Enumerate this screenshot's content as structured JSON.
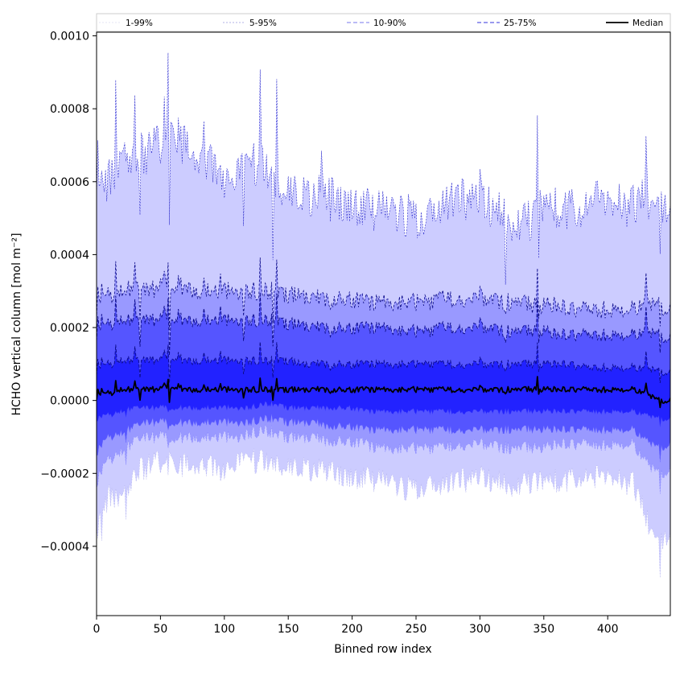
{
  "chart_data": {
    "type": "area",
    "title": "",
    "xlabel": "Binned row index",
    "ylabel": "HCHO vertical column [mol m⁻²]",
    "xlim": [
      0,
      449
    ],
    "ylim": [
      -0.00059,
      0.00101
    ],
    "x_ticks": [
      0,
      50,
      100,
      150,
      200,
      250,
      300,
      350,
      400
    ],
    "y_ticks": [
      -0.0004,
      -0.0002,
      0.0,
      0.0002,
      0.0004,
      0.0006,
      0.0008,
      0.001
    ],
    "x_tick_labels": [
      "0",
      "50",
      "100",
      "150",
      "200",
      "250",
      "300",
      "350",
      "400"
    ],
    "y_tick_labels": [
      "−0.0004",
      "−0.0002",
      "0.0000",
      "0.0002",
      "0.0004",
      "0.0006",
      "0.0008",
      "0.0010"
    ],
    "grid": false,
    "legend_position": "top",
    "legend": [
      {
        "label": "1-99%",
        "style": "line",
        "color": "#dadaf4",
        "dash": "2,2",
        "width": 0.8
      },
      {
        "label": "5-95%",
        "style": "line",
        "color": "#9999dd",
        "dash": "2,2",
        "width": 0.8
      },
      {
        "label": "10-90%",
        "style": "line",
        "color": "#7777ee",
        "dash": "5,3",
        "width": 1.0
      },
      {
        "label": "25-75%",
        "style": "line",
        "color": "#3333dd",
        "dash": "5,3",
        "width": 1.0
      },
      {
        "label": "Median",
        "style": "line",
        "color": "#000000",
        "dash": "",
        "width": 1.8
      }
    ],
    "band_colors": {
      "p1_99": "#ccccff",
      "p5_95": "#9999ff",
      "p10_90": "#5555ff",
      "p25_75": "#2222ff"
    },
    "anchors": {
      "x": [
        0,
        10,
        20,
        30,
        40,
        50,
        60,
        70,
        80,
        90,
        100,
        110,
        120,
        130,
        140,
        150,
        160,
        170,
        180,
        190,
        200,
        210,
        220,
        230,
        240,
        250,
        260,
        270,
        280,
        290,
        300,
        310,
        320,
        330,
        340,
        350,
        360,
        370,
        380,
        390,
        400,
        410,
        420,
        430,
        440,
        449
      ],
      "p1": [
        -0.00036,
        -0.00026,
        -0.00028,
        -0.0002,
        -0.00018,
        -0.00017,
        -0.00017,
        -0.00018,
        -0.00018,
        -0.00018,
        -0.00019,
        -0.00017,
        -0.00017,
        -0.00016,
        -0.00017,
        -0.00018,
        -0.00018,
        -0.00019,
        -0.0002,
        -0.0002,
        -0.00021,
        -0.00021,
        -0.00022,
        -0.00023,
        -0.00024,
        -0.00024,
        -0.00023,
        -0.00023,
        -0.00022,
        -0.00022,
        -0.00021,
        -0.00022,
        -0.00023,
        -0.00023,
        -0.00022,
        -0.00022,
        -0.00022,
        -0.00022,
        -0.00021,
        -0.00021,
        -0.00021,
        -0.00022,
        -0.00023,
        -0.00032,
        -0.0004,
        -0.00037
      ],
      "p5": [
        -0.00022,
        -0.00016,
        -0.00014,
        -0.00011,
        -0.0001,
        -0.0001,
        -0.0001,
        -0.0001,
        -0.0001,
        -0.0001,
        -0.0001,
        -0.0001,
        -9e-05,
        -8e-05,
        -9e-05,
        -0.0001,
        -0.0001,
        -0.0001,
        -0.00011,
        -0.00011,
        -0.00011,
        -0.00012,
        -0.00013,
        -0.00013,
        -0.00013,
        -0.00013,
        -0.00013,
        -0.00013,
        -0.00012,
        -0.00012,
        -0.00012,
        -0.00012,
        -0.00013,
        -0.00013,
        -0.00013,
        -0.00013,
        -0.00012,
        -0.00012,
        -0.00012,
        -0.00012,
        -0.00012,
        -0.00012,
        -0.00012,
        -0.00017,
        -0.0002,
        -0.00019
      ],
      "p10": [
        -0.00014,
        -0.0001,
        -9e-05,
        -7e-05,
        -6e-05,
        -6e-05,
        -6e-05,
        -6e-05,
        -6e-05,
        -6e-05,
        -6e-05,
        -6e-05,
        -6e-05,
        -5e-05,
        -5e-05,
        -6e-05,
        -6e-05,
        -6e-05,
        -7e-05,
        -7e-05,
        -7e-05,
        -8e-05,
        -8e-05,
        -8e-05,
        -8e-05,
        -8e-05,
        -8e-05,
        -8e-05,
        -8e-05,
        -8e-05,
        -8e-05,
        -8e-05,
        -8e-05,
        -8e-05,
        -8e-05,
        -8e-05,
        -8e-05,
        -8e-05,
        -8e-05,
        -8e-05,
        -8e-05,
        -8e-05,
        -8e-05,
        -0.00011,
        -0.00013,
        -0.00012
      ],
      "p25": [
        -5e-05,
        -4e-05,
        -3e-05,
        -2e-05,
        -2e-05,
        -2e-05,
        -2e-05,
        -2e-05,
        -2e-05,
        -2e-05,
        -2e-05,
        -2e-05,
        -2e-05,
        -1e-05,
        -1e-05,
        -2e-05,
        -2e-05,
        -2e-05,
        -2e-05,
        -2e-05,
        -2e-05,
        -3e-05,
        -3e-05,
        -3e-05,
        -3e-05,
        -3e-05,
        -3e-05,
        -3e-05,
        -3e-05,
        -3e-05,
        -3e-05,
        -3e-05,
        -3e-05,
        -3e-05,
        -3e-05,
        -3e-05,
        -3e-05,
        -3e-05,
        -3e-05,
        -3e-05,
        -3e-05,
        -3e-05,
        -3e-05,
        -4e-05,
        -5e-05,
        -5e-05
      ],
      "p50": [
        1e-05,
        2e-05,
        3e-05,
        3e-05,
        3e-05,
        3e-05,
        4e-05,
        3e-05,
        3e-05,
        3e-05,
        3e-05,
        3e-05,
        3e-05,
        3e-05,
        3e-05,
        3e-05,
        3e-05,
        3e-05,
        3e-05,
        3e-05,
        3e-05,
        3e-05,
        3e-05,
        3e-05,
        3e-05,
        3e-05,
        3e-05,
        3e-05,
        3e-05,
        3e-05,
        3e-05,
        3e-05,
        3e-05,
        3e-05,
        3e-05,
        3e-05,
        3e-05,
        3e-05,
        3e-05,
        3e-05,
        3e-05,
        3e-05,
        3e-05,
        2e-05,
        0.0,
        0.0
      ],
      "p75": [
        8e-05,
        0.0001,
        0.00011,
        0.00011,
        0.00011,
        0.00011,
        0.00012,
        0.00011,
        0.00011,
        0.00011,
        0.00011,
        0.00011,
        0.00011,
        0.00011,
        0.00011,
        0.00011,
        0.0001,
        0.0001,
        0.0001,
        0.0001,
        0.0001,
        0.0001,
        0.0001,
        0.0001,
        0.0001,
        0.0001,
        0.0001,
        0.0001,
        0.0001,
        0.0001,
        0.0001,
        0.0001,
        0.0001,
        0.0001,
        0.0001,
        0.0001,
        0.0001,
        0.0001,
        9e-05,
        9e-05,
        9e-05,
        9e-05,
        9e-05,
        9e-05,
        8e-05,
        8e-05
      ],
      "p90": [
        0.00018,
        0.00021,
        0.00022,
        0.00022,
        0.00022,
        0.00022,
        0.00023,
        0.00022,
        0.00022,
        0.00022,
        0.00022,
        0.00022,
        0.00022,
        0.00022,
        0.00022,
        0.00021,
        0.00021,
        0.0002,
        0.0002,
        0.0002,
        0.0002,
        0.0002,
        0.0002,
        0.0002,
        0.00019,
        0.00019,
        0.00019,
        0.0002,
        0.0002,
        0.0002,
        0.0002,
        0.0002,
        0.00019,
        0.00019,
        0.00019,
        0.00019,
        0.00018,
        0.00018,
        0.00018,
        0.00018,
        0.00018,
        0.00018,
        0.00018,
        0.00019,
        0.00018,
        0.00017
      ],
      "p95": [
        0.00025,
        0.00029,
        0.0003,
        0.00031,
        0.0003,
        0.00031,
        0.00032,
        0.00031,
        0.0003,
        0.0003,
        0.0003,
        0.0003,
        0.0003,
        0.0003,
        0.0003,
        0.00029,
        0.00029,
        0.00028,
        0.00028,
        0.00028,
        0.00028,
        0.00027,
        0.00027,
        0.00027,
        0.00027,
        0.00027,
        0.00027,
        0.00028,
        0.00028,
        0.00028,
        0.00028,
        0.00028,
        0.00027,
        0.00027,
        0.00026,
        0.00026,
        0.00026,
        0.00025,
        0.00025,
        0.00025,
        0.00025,
        0.00025,
        0.00025,
        0.00027,
        0.00026,
        0.00025
      ],
      "p99": [
        0.00053,
        0.00061,
        0.00065,
        0.00067,
        0.00068,
        0.0007,
        0.00074,
        0.00069,
        0.00066,
        0.00065,
        0.0006,
        0.00062,
        0.00064,
        0.00066,
        0.0006,
        0.00058,
        0.00057,
        0.00056,
        0.00056,
        0.00055,
        0.00054,
        0.00053,
        0.00052,
        0.00051,
        0.00051,
        0.0005,
        0.00051,
        0.00054,
        0.00055,
        0.00055,
        0.00055,
        0.00053,
        0.0005,
        0.00049,
        0.0005,
        0.00054,
        0.00053,
        0.00052,
        0.00052,
        0.00055,
        0.00054,
        0.00054,
        0.00053,
        0.00056,
        0.00052,
        0.00052
      ]
    },
    "spikes": [
      {
        "x": 1,
        "dp99": 0.00012,
        "dp1": -6e-05
      },
      {
        "x": 4,
        "dp99": 0.00011,
        "dp1": -4e-05
      },
      {
        "x": 15,
        "dp99": 0.0002,
        "dp1": 0.0
      },
      {
        "x": 23,
        "dp99": 0.0,
        "dp1": -7e-05
      },
      {
        "x": 30,
        "dp99": 0.00016,
        "dp1": 0.0
      },
      {
        "x": 34,
        "dp99": -0.00022,
        "dp1": 0.0
      },
      {
        "x": 42,
        "dp99": 7e-05,
        "dp1": 0.0
      },
      {
        "x": 53,
        "dp99": 0.00013,
        "dp1": 0.0
      },
      {
        "x": 56,
        "dp99": 0.00022,
        "dp1": -4e-05
      },
      {
        "x": 57,
        "dp99": -0.0003,
        "dp1": 0.0
      },
      {
        "x": 64,
        "dp99": 0.0001,
        "dp1": 0.0
      },
      {
        "x": 84,
        "dp99": 0.00013,
        "dp1": 0.0
      },
      {
        "x": 97,
        "dp99": 9e-05,
        "dp1": 0.0
      },
      {
        "x": 115,
        "dp99": -0.00016,
        "dp1": 0.0
      },
      {
        "x": 128,
        "dp99": 0.00021,
        "dp1": 0.0
      },
      {
        "x": 138,
        "dp99": -0.00019,
        "dp1": 0.0
      },
      {
        "x": 141,
        "dp99": 0.00025,
        "dp1": 0.0
      },
      {
        "x": 176,
        "dp99": 8e-05,
        "dp1": 0.0
      },
      {
        "x": 183,
        "dp99": -8e-05,
        "dp1": 0.0
      },
      {
        "x": 276,
        "dp99": 5e-05,
        "dp1": 0.0
      },
      {
        "x": 300,
        "dp99": 8e-05,
        "dp1": 0.0
      },
      {
        "x": 320,
        "dp99": -0.00016,
        "dp1": 0.0
      },
      {
        "x": 345,
        "dp99": 0.00031,
        "dp1": 0.0
      },
      {
        "x": 346,
        "dp99": -0.00013,
        "dp1": 0.0
      },
      {
        "x": 390,
        "dp99": 8e-05,
        "dp1": 0.0
      },
      {
        "x": 430,
        "dp99": 0.00021,
        "dp1": 0.0
      },
      {
        "x": 441,
        "dp99": -0.00017,
        "dp1": -0.00012
      }
    ]
  }
}
